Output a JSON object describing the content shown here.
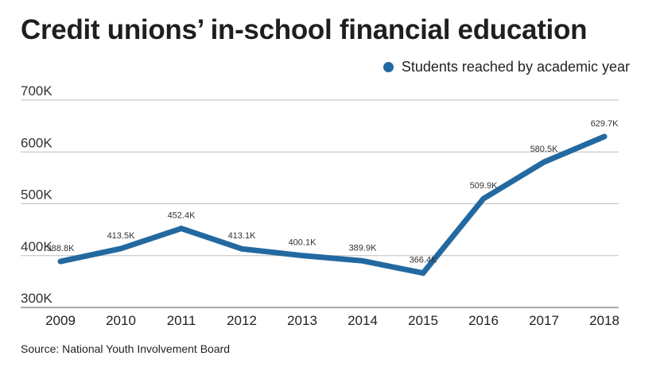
{
  "chart_data": {
    "type": "line",
    "title": "Credit unions’ in-school financial education",
    "source": "Source: National Youth Involvement Board",
    "legend_position": "top-right",
    "grid": true,
    "x": [
      "2009",
      "2010",
      "2011",
      "2012",
      "2013",
      "2014",
      "2015",
      "2016",
      "2017",
      "2018"
    ],
    "y_ticks": [
      {
        "value": 300000,
        "label": "300K"
      },
      {
        "value": 400000,
        "label": "400K"
      },
      {
        "value": 500000,
        "label": "500K"
      },
      {
        "value": 600000,
        "label": "600K"
      },
      {
        "value": 700000,
        "label": "700K"
      }
    ],
    "ylim": [
      300000,
      700000
    ],
    "series": [
      {
        "name": "Students reached by academic year",
        "color": "#2369a1",
        "values": [
          388800,
          413500,
          452400,
          413100,
          400100,
          389900,
          366400,
          509900,
          580500,
          629700
        ],
        "labels": [
          "388.8K",
          "413.5K",
          "452.4K",
          "413.1K",
          "400.1K",
          "389.9K",
          "366.4K",
          "509.9K",
          "580.5K",
          "629.7K"
        ]
      }
    ]
  }
}
